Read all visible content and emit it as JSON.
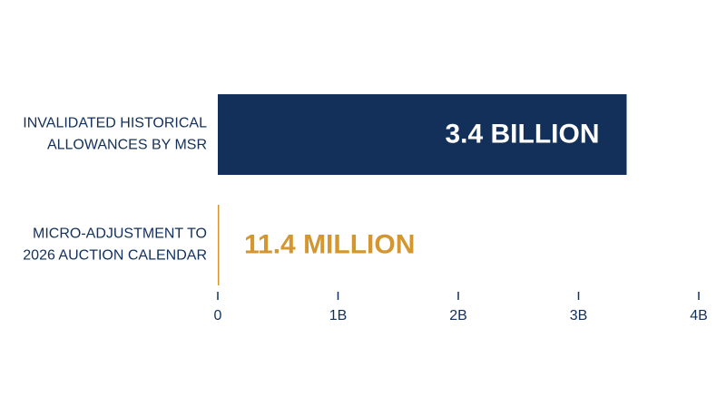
{
  "chart_data": {
    "type": "hbar",
    "categories": [
      "INVALIDATED HISTORICAL ALLOWANCES BY MSR",
      "MICRO-ADJUSTMENT TO 2026 AUCTION CALENDAR"
    ],
    "values": [
      3400000000,
      11400000
    ],
    "value_labels": [
      "3.4 BILLION",
      "11.4 MILLION"
    ],
    "colors": [
      "#12305a",
      "#d4962f"
    ],
    "xlim": [
      0,
      4000000000
    ],
    "xticks": [
      0,
      {
        "value": 1000000000,
        "label": "1B"
      },
      {
        "value": 2000000000,
        "label": "2B"
      },
      {
        "value": 3000000000,
        "label": "3B"
      },
      {
        "value": 4000000000,
        "label": "4B"
      }
    ]
  }
}
